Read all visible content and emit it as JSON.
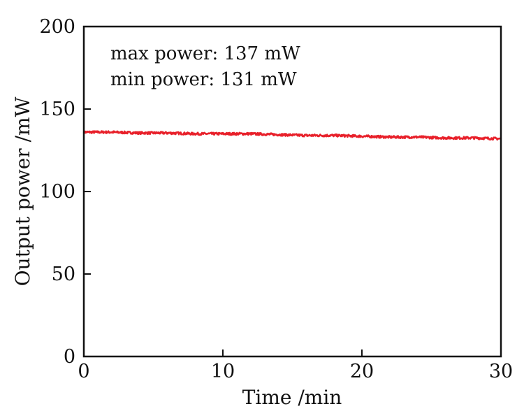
{
  "chart_data": {
    "type": "line",
    "title": "",
    "xlabel": "Time /min",
    "ylabel": "Output power /mW",
    "xlim": [
      0,
      30
    ],
    "ylim": [
      0,
      200
    ],
    "x_ticks": [
      0,
      10,
      20,
      30
    ],
    "y_ticks": [
      0,
      50,
      100,
      150,
      200
    ],
    "grid": false,
    "annotations": [
      "max power: 137 mW",
      "min power: 131 mW"
    ],
    "series": [
      {
        "color": "#e8202a",
        "x": [
          0,
          2,
          4,
          6,
          8,
          10,
          12,
          14,
          16,
          18,
          20,
          22,
          24,
          26,
          28,
          30
        ],
        "y": [
          136,
          136,
          135.5,
          135.5,
          135,
          135,
          135,
          134.5,
          134,
          134,
          133.5,
          133,
          133,
          132.5,
          132.5,
          132
        ]
      }
    ]
  }
}
